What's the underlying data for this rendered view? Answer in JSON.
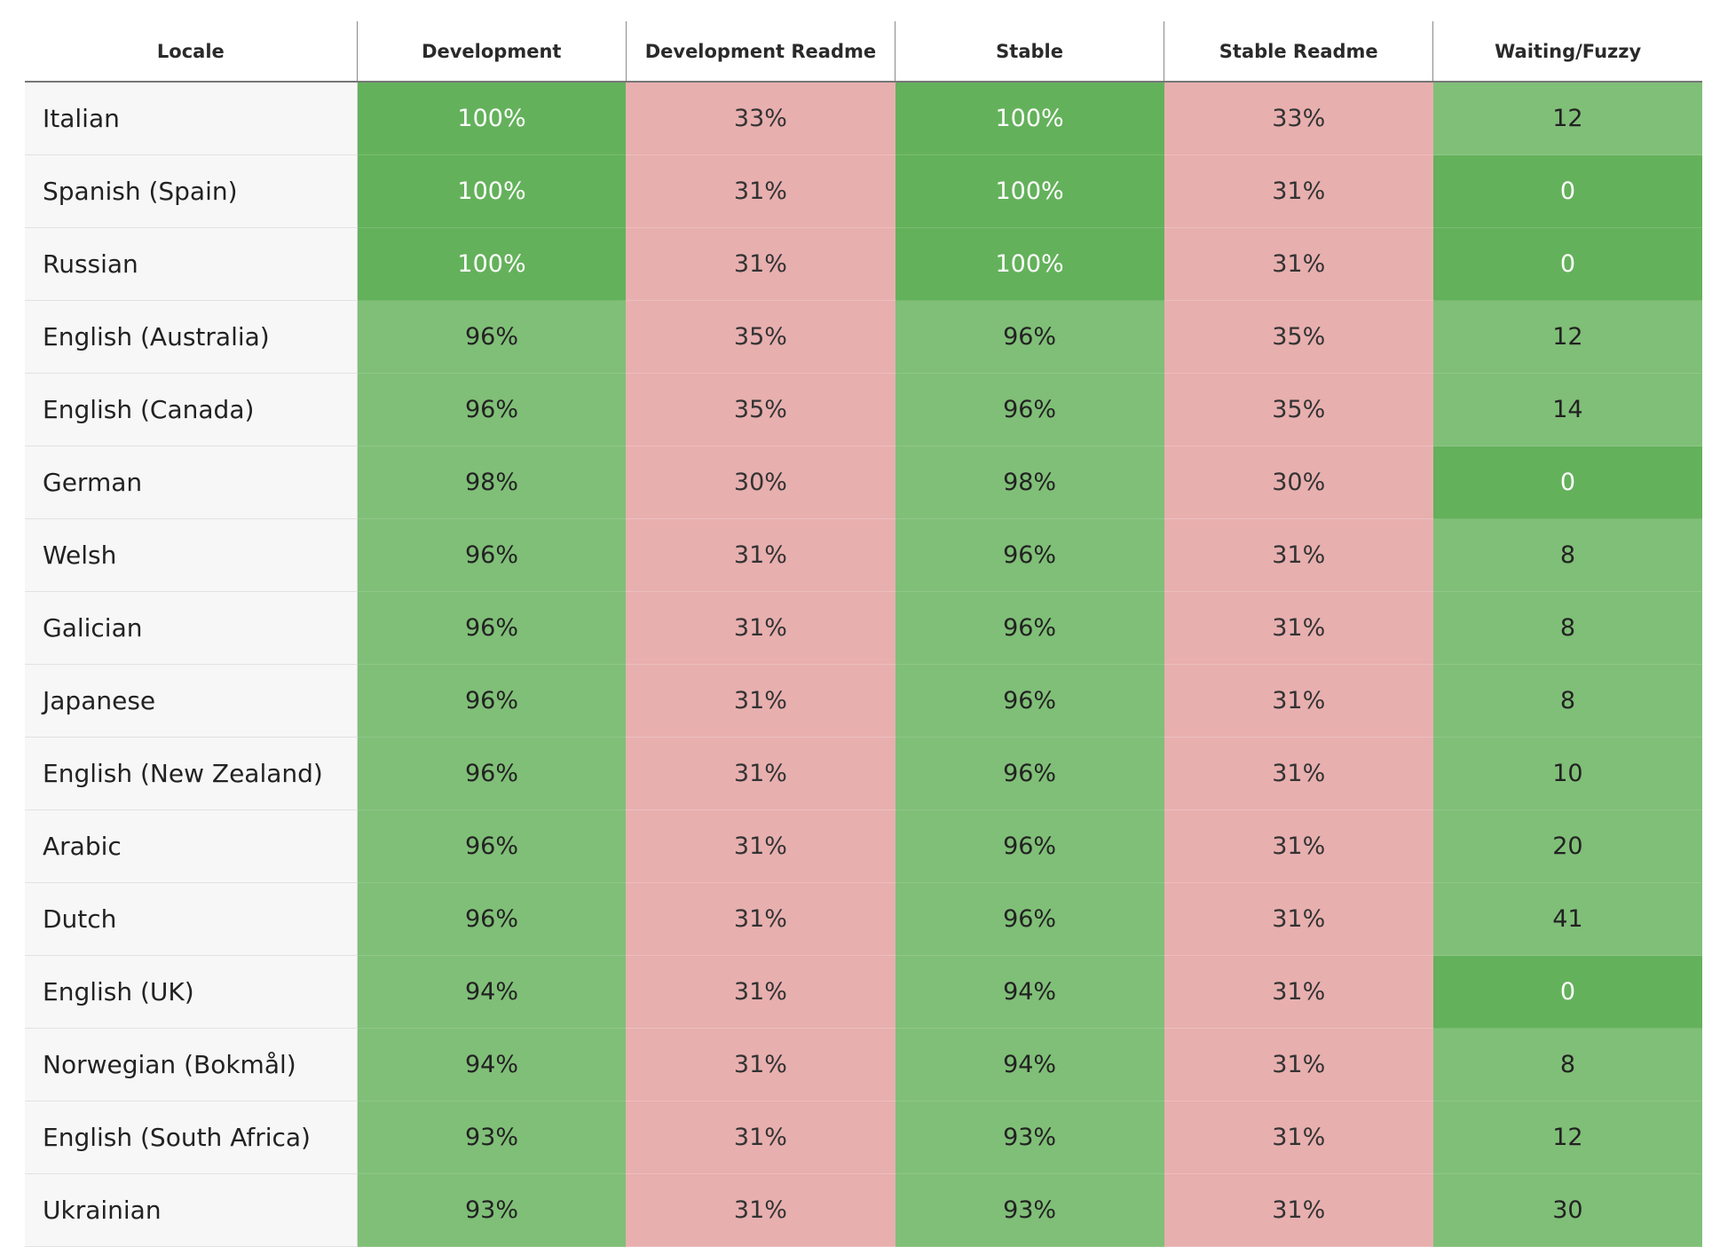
{
  "table": {
    "columns": [
      "Locale",
      "Development",
      "Development Readme",
      "Stable",
      "Stable Readme",
      "Waiting/Fuzzy"
    ],
    "rows": [
      {
        "locale": "Italian",
        "development": "100%",
        "development_readme": "33%",
        "stable": "100%",
        "stable_readme": "33%",
        "waiting_fuzzy": "12"
      },
      {
        "locale": "Spanish (Spain)",
        "development": "100%",
        "development_readme": "31%",
        "stable": "100%",
        "stable_readme": "31%",
        "waiting_fuzzy": "0"
      },
      {
        "locale": "Russian",
        "development": "100%",
        "development_readme": "31%",
        "stable": "100%",
        "stable_readme": "31%",
        "waiting_fuzzy": "0"
      },
      {
        "locale": "English (Australia)",
        "development": "96%",
        "development_readme": "35%",
        "stable": "96%",
        "stable_readme": "35%",
        "waiting_fuzzy": "12"
      },
      {
        "locale": "English (Canada)",
        "development": "96%",
        "development_readme": "35%",
        "stable": "96%",
        "stable_readme": "35%",
        "waiting_fuzzy": "14"
      },
      {
        "locale": "German",
        "development": "98%",
        "development_readme": "30%",
        "stable": "98%",
        "stable_readme": "30%",
        "waiting_fuzzy": "0"
      },
      {
        "locale": "Welsh",
        "development": "96%",
        "development_readme": "31%",
        "stable": "96%",
        "stable_readme": "31%",
        "waiting_fuzzy": "8"
      },
      {
        "locale": "Galician",
        "development": "96%",
        "development_readme": "31%",
        "stable": "96%",
        "stable_readme": "31%",
        "waiting_fuzzy": "8"
      },
      {
        "locale": "Japanese",
        "development": "96%",
        "development_readme": "31%",
        "stable": "96%",
        "stable_readme": "31%",
        "waiting_fuzzy": "8"
      },
      {
        "locale": "English (New Zealand)",
        "development": "96%",
        "development_readme": "31%",
        "stable": "96%",
        "stable_readme": "31%",
        "waiting_fuzzy": "10"
      },
      {
        "locale": "Arabic",
        "development": "96%",
        "development_readme": "31%",
        "stable": "96%",
        "stable_readme": "31%",
        "waiting_fuzzy": "20"
      },
      {
        "locale": "Dutch",
        "development": "96%",
        "development_readme": "31%",
        "stable": "96%",
        "stable_readme": "31%",
        "waiting_fuzzy": "41"
      },
      {
        "locale": "English (UK)",
        "development": "94%",
        "development_readme": "31%",
        "stable": "94%",
        "stable_readme": "31%",
        "waiting_fuzzy": "0"
      },
      {
        "locale": "Norwegian (Bokmål)",
        "development": "94%",
        "development_readme": "31%",
        "stable": "94%",
        "stable_readme": "31%",
        "waiting_fuzzy": "8"
      },
      {
        "locale": "English (South Africa)",
        "development": "93%",
        "development_readme": "31%",
        "stable": "93%",
        "stable_readme": "31%",
        "waiting_fuzzy": "12"
      },
      {
        "locale": "Ukrainian",
        "development": "93%",
        "development_readme": "31%",
        "stable": "93%",
        "stable_readme": "31%",
        "waiting_fuzzy": "30"
      }
    ]
  },
  "colors": {
    "complete": "#64b15b",
    "high": "#80bf78",
    "low": "#e8afaf",
    "locale_background": "#f7f7f7"
  }
}
